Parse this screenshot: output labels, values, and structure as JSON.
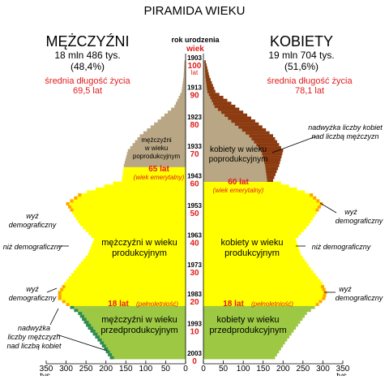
{
  "chart_data": {
    "type": "population-pyramid",
    "title": "PIRAMIDA WIEKU",
    "center_header": {
      "line1": "rok urodzenia",
      "line2": "wiek"
    },
    "left": {
      "title": "MĘŻCZYŹNI",
      "total": "18 mln 486 tys.",
      "share": "(48,4%)",
      "life_label": "średnia długość życia",
      "life_value": "69,5 lat"
    },
    "right": {
      "title": "KOBIETY",
      "total": "19 mln 704 tys.",
      "share": "(51,6%)",
      "life_label": "średnia długość życia",
      "life_value": "78,1 lat"
    },
    "center_ticks": [
      {
        "year": "1903",
        "age": "100",
        "age2": "lat",
        "age_value": 100
      },
      {
        "year": "1913",
        "age": "90",
        "age_value": 90
      },
      {
        "year": "1923",
        "age": "80",
        "age_value": 80
      },
      {
        "year": "1933",
        "age": "70",
        "age_value": 70
      },
      {
        "year": "1943",
        "age": "60",
        "age_value": 60
      },
      {
        "year": "1953",
        "age": "50",
        "age_value": 50
      },
      {
        "year": "1963",
        "age": "40",
        "age_value": 40
      },
      {
        "year": "1973",
        "age": "30",
        "age_value": 30
      },
      {
        "year": "1983",
        "age": "20",
        "age_value": 20
      },
      {
        "year": "1993",
        "age": "10",
        "age_value": 10
      },
      {
        "year": "2003",
        "age": "0",
        "age_value": 0
      }
    ],
    "x_ticks_left": [
      "350",
      "300",
      "250",
      "200",
      "150",
      "100",
      "50",
      "0"
    ],
    "x_ticks_right": [
      "0",
      "50",
      "100",
      "150",
      "200",
      "250",
      "300",
      "350"
    ],
    "x_tick_values": [
      350,
      300,
      250,
      200,
      150,
      100,
      50,
      0
    ],
    "x_unit": "tys.",
    "xlim": [
      0,
      350
    ],
    "age_range": [
      0,
      100
    ],
    "colors": {
      "post_working": "#b9a684",
      "working": "#ffff00",
      "pre_working": "#9cc843",
      "excess_female": "#8c3a10",
      "boom": "#ffa500",
      "excess_male": "#2e8b57",
      "accent_text": "#e11d1d"
    },
    "annotations": {
      "male_post": [
        "mężczyźni",
        "w wieku",
        "poprodukcyjnym"
      ],
      "female_post": [
        "kobiety w wieku",
        "poprodukcyjnym"
      ],
      "male_work": [
        "mężczyźni w wieku",
        "produkcyjnym"
      ],
      "female_work": [
        "kobiety w wieku",
        "produkcyjnym"
      ],
      "male_pre": [
        "mężczyźni w wieku",
        "przedprodukcyjnym"
      ],
      "female_pre": [
        "kobiety w wieku",
        "przedprodukcyjnym"
      ],
      "m65_main": "65 lat",
      "m65_sub": "(wiek emerytalny)",
      "f60_main": "60 lat",
      "f60_sub": "(wiek emerytalny)",
      "a18_main": "18 lat",
      "a18_sub": "(pełnoletniość)",
      "baby_boom": [
        "wyż",
        "demograficzny"
      ],
      "baby_bust": "niż demograficzny",
      "excess_women": [
        "nadwyżka liczby kobiet",
        "nad liczbą mężczyzn"
      ],
      "excess_men": [
        "nadwyżka",
        "liczby mężczyzn",
        "nad liczbą kobiet"
      ]
    },
    "series_by_age": [
      {
        "age": 100,
        "male": 3,
        "female": 6
      },
      {
        "age": 95,
        "male": 5,
        "female": 15
      },
      {
        "age": 90,
        "male": 10,
        "female": 30
      },
      {
        "age": 85,
        "male": 28,
        "female": 80
      },
      {
        "age": 80,
        "male": 70,
        "female": 130
      },
      {
        "age": 75,
        "male": 115,
        "female": 175
      },
      {
        "age": 70,
        "male": 145,
        "female": 200
      },
      {
        "age": 65,
        "male": 155,
        "female": 190
      },
      {
        "age": 60,
        "male": 160,
        "female": 175
      },
      {
        "age": 55,
        "male": 270,
        "female": 275
      },
      {
        "age": 52,
        "male": 300,
        "female": 300
      },
      {
        "age": 50,
        "male": 290,
        "female": 290
      },
      {
        "age": 45,
        "male": 265,
        "female": 265
      },
      {
        "age": 40,
        "male": 230,
        "female": 232
      },
      {
        "age": 35,
        "male": 245,
        "female": 244
      },
      {
        "age": 30,
        "male": 275,
        "female": 270
      },
      {
        "age": 25,
        "male": 305,
        "female": 300
      },
      {
        "age": 22,
        "male": 320,
        "female": 310
      },
      {
        "age": 20,
        "male": 320,
        "female": 306
      },
      {
        "age": 18,
        "male": 300,
        "female": 290
      },
      {
        "age": 15,
        "male": 270,
        "female": 260
      },
      {
        "age": 10,
        "male": 245,
        "female": 232
      },
      {
        "age": 5,
        "male": 215,
        "female": 205
      },
      {
        "age": 0,
        "male": 190,
        "female": 180
      }
    ]
  }
}
